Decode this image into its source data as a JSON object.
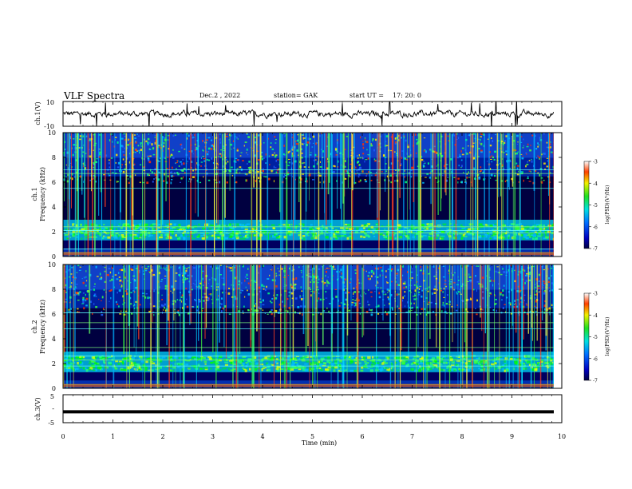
{
  "header": {
    "title": "VLF Spectra",
    "date": "Dec.2 , 2022",
    "station": "station= GAK",
    "start_ut": "start UT =",
    "start_time": "17: 20: 0"
  },
  "chart_data": [
    {
      "type": "line",
      "panel": "ch1-waveform",
      "ylabel": "ch.1(V)",
      "ylim": [
        -10,
        10
      ],
      "yticks": [
        "10",
        "-10"
      ],
      "baseline": 0,
      "description_values": {
        "mean": 0,
        "typical_amplitude": 2
      }
    },
    {
      "type": "heatmap",
      "panel": "ch1-spectrogram",
      "ylabel": "Frequency (kHz)",
      "channel_label": "ch.1",
      "ylim": [
        0,
        10
      ],
      "yticks": [
        "0",
        "2",
        "4",
        "6",
        "8",
        "10"
      ],
      "colorbar": {
        "label": "log(PSD)(V²/Hz)",
        "range": [
          -7,
          -3
        ],
        "ticks": [
          "-3",
          "-4",
          "-5",
          "-6",
          "-7"
        ]
      },
      "bands_khz": [
        0.3,
        0.6,
        1.9,
        2.1,
        2.4,
        5.5,
        6.7,
        7.0
      ]
    },
    {
      "type": "heatmap",
      "panel": "ch2-spectrogram",
      "ylabel": "Frequency (kHz)",
      "channel_label": "ch.2",
      "ylim": [
        0,
        10
      ],
      "yticks": [
        "0",
        "2",
        "4",
        "6",
        "8",
        "10"
      ],
      "colorbar": {
        "label": "log(PSD)(V²/Hz)",
        "range": [
          -7,
          -3
        ],
        "ticks": [
          "-3",
          "-4",
          "-5",
          "-6",
          "-7"
        ]
      },
      "bands_khz": [
        0.3,
        1.8,
        2.3,
        2.6,
        3.3,
        4.8,
        5.3,
        6.1
      ]
    },
    {
      "type": "line",
      "panel": "ch3-waveform",
      "ylabel": "ch.3(V)",
      "ylim": [
        -5,
        5
      ],
      "yticks": [
        "5",
        "-",
        "-5"
      ],
      "values_constant": -1.1
    }
  ],
  "xaxis": {
    "label": "Time (min)",
    "range": [
      0,
      10
    ],
    "ticks": [
      "0",
      "1",
      "2",
      "3",
      "4",
      "5",
      "6",
      "7",
      "8",
      "9",
      "10"
    ]
  }
}
